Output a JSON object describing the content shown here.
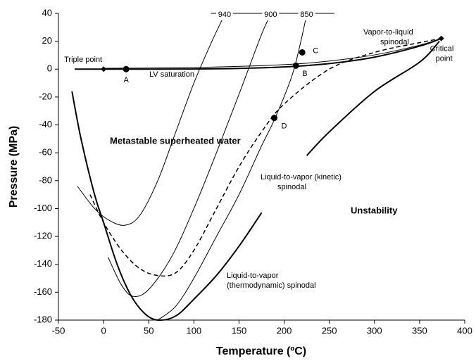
{
  "chart_data": {
    "type": "line",
    "x_label": "Temperature (ºC)",
    "y_label": "Pressure (MPa)",
    "xlim": [
      -50,
      400
    ],
    "ylim": [
      -180,
      40
    ],
    "xticks": [
      -50,
      0,
      50,
      100,
      150,
      200,
      250,
      300,
      350,
      400
    ],
    "yticks": [
      40,
      20,
      0,
      -20,
      -40,
      -60,
      -80,
      -100,
      -120,
      -140,
      -160,
      -180
    ],
    "series": [
      {
        "color": "#000000",
        "line_width": 2,
        "dashed": false,
        "x": [
          -32,
          0,
          50,
          100,
          150,
          200,
          250,
          300,
          350,
          374
        ],
        "values": [
          0,
          0,
          0,
          0.1,
          0.5,
          1.6,
          4,
          8.6,
          16.5,
          22
        ]
      },
      {
        "color": "#000000",
        "line_width": 1,
        "dashed": false,
        "x": [
          0,
          100,
          200,
          250,
          300,
          350,
          374
        ],
        "values": [
          0.6,
          1.2,
          3.2,
          5.8,
          10.2,
          17.2,
          22
        ]
      },
      {
        "color": "#000000",
        "line_width": 2,
        "dashed": false,
        "x": [
          -35,
          -25,
          -10,
          0,
          15,
          30,
          45,
          60,
          80,
          100,
          125,
          150,
          175,
          200,
          225,
          250,
          300,
          350,
          372
        ],
        "values": [
          -16,
          -50,
          -90,
          -110,
          -140,
          -162,
          -175,
          -180,
          -177,
          -165,
          -148,
          -127,
          -103,
          null,
          -62,
          -45,
          -16,
          5,
          20
        ]
      },
      {
        "color": "#000000",
        "line_width": 1.5,
        "dashed": true,
        "x": [
          -15,
          0,
          20,
          40,
          60,
          80,
          100,
          125,
          150,
          175,
          200,
          250,
          300,
          350,
          374
        ],
        "values": [
          -90,
          -110,
          -130,
          -143,
          -148,
          -146,
          -130,
          -100,
          -70,
          -45,
          -25,
          0,
          12,
          19,
          22
        ]
      },
      {
        "name": "940",
        "color": "#000000",
        "line_width": 1,
        "dashed": false,
        "x": [
          -29,
          -10,
          5,
          23,
          40,
          60,
          80,
          100,
          120,
          134
        ],
        "values": [
          -84,
          -100,
          -108,
          -112,
          -105,
          -80,
          -45,
          -10,
          20,
          39
        ]
      },
      {
        "name": "900",
        "color": "#000000",
        "line_width": 1,
        "dashed": false,
        "x": [
          5,
          20,
          33,
          50,
          75,
          100,
          125,
          150,
          175,
          185
        ],
        "values": [
          -135,
          -155,
          -163,
          -158,
          -135,
          -100,
          -60,
          -18,
          25,
          39
        ]
      },
      {
        "name": "850",
        "color": "#000000",
        "line_width": 1,
        "dashed": false,
        "x": [
          60,
          80,
          100,
          125,
          150,
          175,
          190,
          210,
          225
        ],
        "values": [
          -180,
          -170,
          -150,
          -120,
          -90,
          -55,
          -35,
          -2,
          39
        ]
      }
    ],
    "points": [
      {
        "label": "Triple point",
        "marker": "diamond",
        "x": 0,
        "y": 0
      },
      {
        "label": "A",
        "marker": "circle",
        "x": 25,
        "y": 0
      },
      {
        "label": "B",
        "marker": "circle",
        "x": 213,
        "y": 2.5
      },
      {
        "label": "C",
        "marker": "circle",
        "x": 220,
        "y": 12
      },
      {
        "label": "D",
        "marker": "circle",
        "x": 189,
        "y": -35
      },
      {
        "label": [
          "Critical",
          "point"
        ],
        "marker": "diamond",
        "x": 374,
        "y": 22
      }
    ],
    "annotations": [
      "LV saturation",
      [
        "Vapor-to-liquid",
        "spinodal"
      ],
      "Metastable superheated  water",
      [
        "Liquid-to-vapor (kinetic)",
        "spinodal"
      ],
      "Unstability",
      [
        "Liquid-to-vapor",
        "(thermodynamic) spinodal"
      ]
    ]
  }
}
